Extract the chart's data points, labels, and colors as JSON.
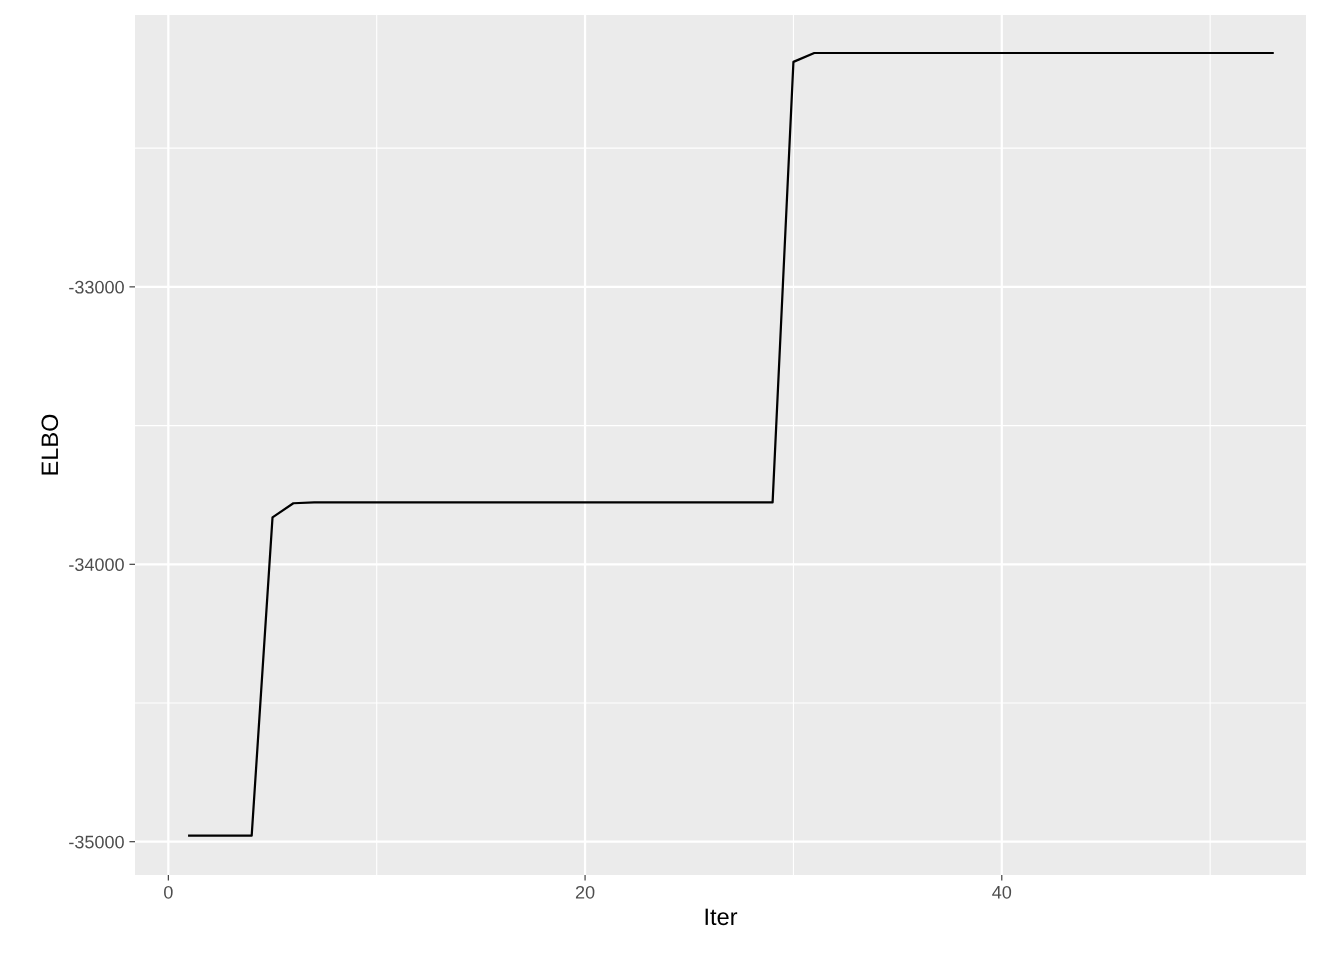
{
  "chart_data": {
    "type": "line",
    "xlabel": "Iter",
    "ylabel": "ELBO",
    "x": [
      1,
      2,
      3,
      4,
      5,
      6,
      7,
      8,
      9,
      10,
      11,
      12,
      13,
      14,
      15,
      16,
      17,
      18,
      19,
      20,
      21,
      22,
      23,
      24,
      25,
      26,
      27,
      28,
      29,
      30,
      31,
      32,
      33,
      34,
      35,
      36,
      37,
      38,
      39,
      40,
      41,
      42,
      43,
      44,
      45,
      46,
      47,
      48,
      49,
      50,
      51,
      52,
      53
    ],
    "series": [
      {
        "color": "#000000",
        "values": [
          -34978,
          -34978,
          -34978,
          -34978,
          -33831,
          -33780,
          -33777,
          -33777,
          -33777,
          -33777,
          -33777,
          -33777,
          -33777,
          -33777,
          -33777,
          -33777,
          -33777,
          -33777,
          -33777,
          -33777,
          -33777,
          -33777,
          -33777,
          -33777,
          -33777,
          -33777,
          -33777,
          -33777,
          -33777,
          -32189,
          -32157,
          -32157,
          -32157,
          -32157,
          -32157,
          -32157,
          -32157,
          -32157,
          -32157,
          -32157,
          -32157,
          -32157,
          -32157,
          -32157,
          -32157,
          -32157,
          -32157,
          -32157,
          -32157,
          -32157,
          -32157,
          -32157,
          -32157
        ]
      }
    ],
    "xlim": [
      -1.6,
      54.6
    ],
    "ylim": [
      -35120,
      -32020
    ],
    "xticks": [
      0,
      {
        "value": 10,
        "label": null
      },
      20,
      {
        "value": 30,
        "label": null
      },
      40,
      {
        "value": 50,
        "label": null
      }
    ],
    "yticks": [
      {
        "value": -35000,
        "label": "-35000"
      },
      {
        "value": -34500,
        "label": null
      },
      {
        "value": -34000,
        "label": "-34000"
      },
      {
        "value": -33500,
        "label": null
      },
      {
        "value": -33000,
        "label": "-33000"
      },
      {
        "value": -32500,
        "label": null
      }
    ],
    "grid": true,
    "marker": "none",
    "line_style": "solid"
  }
}
